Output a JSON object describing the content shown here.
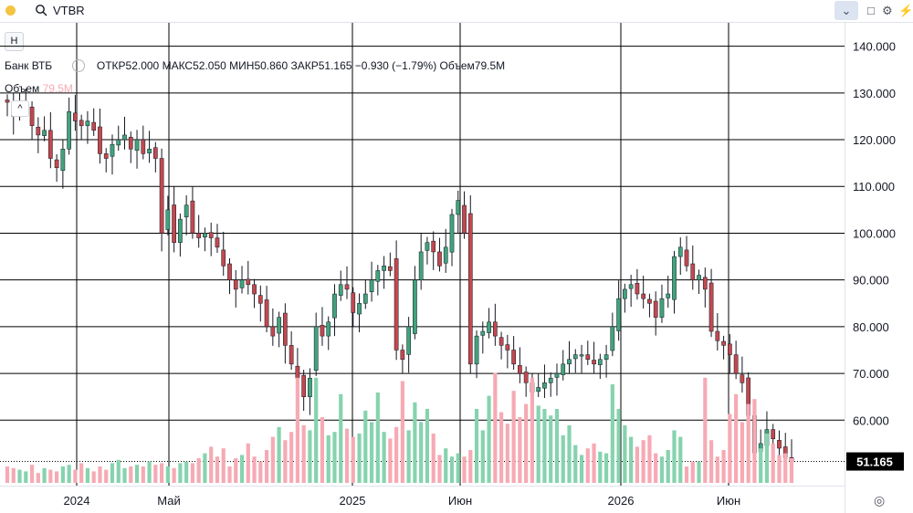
{
  "toolbar": {
    "symbol": "VTBR",
    "dropdown_icon": "chevron-down-icon",
    "icons": [
      "square-icon",
      "gear-icon",
      "lightning-icon"
    ],
    "dot_color": "#f4c542"
  },
  "side": {
    "h_button": "H",
    "collapse_icon": "chevron-up-icon"
  },
  "legend": {
    "name": "Банк ВТБ",
    "open": "ОТКР52.000",
    "high": "МАКС52.050",
    "low": "МИН50.860",
    "close": "ЗАКР51.165",
    "change": "−0.930 (−1.79%)",
    "volume": "Объем79.5M"
  },
  "volume_legend": {
    "label": "Объем",
    "value": "79.5M"
  },
  "price_scale": {
    "labels": [
      "140.000",
      "130.000",
      "120.000",
      "110.000",
      "100.000",
      "90.000",
      "80.000",
      "70.000",
      "60.000"
    ],
    "last_price": "51.165"
  },
  "time_scale": {
    "labels": [
      "2024",
      "Май",
      "2025",
      "Июн",
      "2026",
      "Июн"
    ]
  },
  "colors": {
    "up": "#41a37c",
    "down": "#c2484f",
    "vol_up": "#86d3ae",
    "vol_down": "#f6aab4",
    "grid": "#000000",
    "last_bg": "#000000"
  },
  "chart_data": {
    "type": "candlestick",
    "symbol": "VTBR",
    "y_range": [
      46,
      145
    ],
    "y_ticks": [
      140,
      130,
      120,
      110,
      100,
      90,
      80,
      70,
      60
    ],
    "x_tick_labels": [
      "2024",
      "Май",
      "2025",
      "Июн",
      "2026",
      "Июн"
    ],
    "last_price": 51.165,
    "volume_label": "79.5M",
    "close_series": [
      128,
      125,
      127,
      127,
      123,
      121,
      122,
      116,
      114,
      118,
      126,
      124,
      123,
      124,
      122,
      117,
      116,
      119,
      120,
      121,
      118,
      120,
      117,
      118,
      116,
      100,
      105,
      98,
      103,
      106,
      100,
      99,
      100,
      99,
      97,
      93,
      90,
      88,
      90,
      89,
      87,
      85,
      80,
      78,
      82,
      76,
      72,
      69,
      65,
      69,
      80,
      78,
      81,
      87,
      89,
      88,
      83,
      85,
      87,
      90,
      92,
      93,
      92,
      75,
      73,
      80,
      90,
      96,
      98,
      96,
      93,
      97,
      104,
      107,
      100,
      72,
      78,
      79,
      81,
      78,
      76,
      75,
      72,
      70,
      68,
      66,
      67,
      68,
      69,
      70,
      72,
      73,
      74,
      74,
      73,
      72,
      73,
      74,
      80,
      86,
      88,
      89,
      87,
      86,
      85,
      82,
      86,
      87,
      95,
      97,
      93,
      90,
      91,
      88,
      79,
      77,
      76,
      74,
      70,
      68,
      61,
      53,
      55,
      58,
      56,
      54,
      52,
      51.165
    ],
    "volume_series": [
      1.0,
      0.9,
      0.8,
      0.7,
      1.1,
      0.6,
      0.9,
      0.8,
      0.7,
      1.0,
      1.1,
      0.8,
      1.2,
      0.9,
      0.7,
      1.0,
      0.8,
      1.2,
      1.4,
      0.9,
      1.0,
      1.1,
      1.0,
      1.3,
      1.1,
      1.2,
      1.0,
      0.9,
      1.2,
      1.3,
      1.2,
      1.5,
      1.8,
      2.2,
      1.6,
      2.1,
      1.0,
      1.5,
      1.7,
      2.4,
      1.6,
      1.3,
      2.0,
      2.8,
      3.4,
      2.6,
      3.1,
      6.4,
      3.5,
      3.2,
      6.4,
      4.0,
      2.9,
      3.1,
      5.4,
      3.3,
      2.8,
      3.0,
      4.4,
      3.7,
      5.5,
      3.1,
      2.7,
      3.4,
      6.2,
      3.2,
      4.9,
      3.7,
      4.5,
      3.0,
      1.7,
      2.1,
      1.6,
      1.8,
      1.6,
      2.0,
      4.5,
      3.2,
      5.3,
      6.7,
      4.3,
      3.6,
      5.6,
      4.0,
      4.8,
      6.4,
      4.7,
      4.5,
      4.1,
      4.5,
      2.9,
      3.5,
      2.3,
      1.7,
      2.1,
      2.4,
      1.9,
      1.8,
      6.0,
      4.5,
      3.5,
      2.8,
      2.2,
      2.6,
      2.9,
      1.8,
      1.6,
      2.0,
      3.2,
      2.8,
      1.0,
      1.3,
      1.3,
      6.4,
      2.6,
      1.6,
      2.0,
      4.2,
      5.4,
      3.7,
      4.8,
      5.1,
      2.1,
      3.0,
      2.4,
      1.7,
      1.8,
      1.5
    ]
  }
}
